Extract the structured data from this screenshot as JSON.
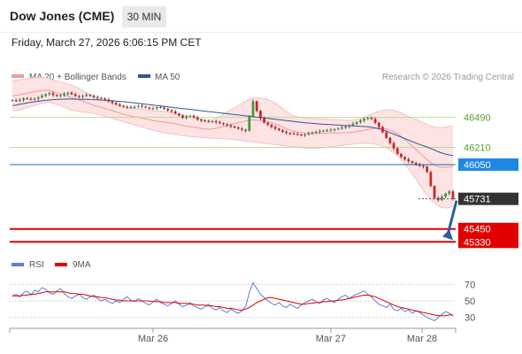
{
  "header": {
    "title": "Dow Jones (CME)",
    "timeframe": "30 MIN",
    "datetime": "Friday, March 27, 2026 6:06:15 PM CET"
  },
  "chart_data": {
    "type": "candlestick",
    "price_legend": [
      {
        "name": "MA 20 + Bollinger Bands",
        "color": "#f19a9a"
      },
      {
        "name": "MA 50",
        "color": "#2f5597"
      }
    ],
    "credit": "Research © 2026 Trading Central",
    "x_ticks": [
      "Mar 26",
      "Mar 27",
      "Mar 28"
    ],
    "y_range": [
      45250,
      46800
    ],
    "levels": [
      {
        "value": 46490,
        "label": "46490",
        "kind": "resistance",
        "color": "#8bc34a"
      },
      {
        "value": 46210,
        "label": "46210",
        "kind": "resistance",
        "color": "#8bc34a"
      },
      {
        "value": 46050,
        "label": "46050",
        "kind": "pivot",
        "color": "#1565c0"
      },
      {
        "value": 45731,
        "label": "45731",
        "kind": "last",
        "color": "#333333"
      },
      {
        "value": 45450,
        "label": "45450",
        "kind": "support",
        "color": "#e00000"
      },
      {
        "value": 45330,
        "label": "45330",
        "kind": "support",
        "color": "#e00000"
      }
    ],
    "close": [
      46650,
      46645,
      46652,
      46668,
      46662,
      46658,
      46665,
      46675,
      46690,
      46705,
      46715,
      46698,
      46688,
      46695,
      46710,
      46720,
      46705,
      46690,
      46682,
      46690,
      46700,
      46692,
      46680,
      46672,
      46665,
      46655,
      46640,
      46625,
      46610,
      46598,
      46590,
      46585,
      46580,
      46590,
      46598,
      46590,
      46580,
      46570,
      46575,
      46585,
      46580,
      46570,
      46555,
      46545,
      46525,
      46508,
      46488,
      46498,
      46505,
      46490,
      46470,
      46460,
      46455,
      46450,
      46455,
      46445,
      46435,
      46425,
      46415,
      46405,
      46395,
      46385,
      46375,
      46365,
      46500,
      46640,
      46550,
      46480,
      46440,
      46420,
      46400,
      46385,
      46370,
      46355,
      46345,
      46340,
      46335,
      46330,
      46325,
      46330,
      46340,
      46350,
      46355,
      46360,
      46365,
      46370,
      46375,
      46380,
      46385,
      46395,
      46405,
      46415,
      46430,
      46445,
      46460,
      46475,
      46485,
      46475,
      46440,
      46400,
      46350,
      46300,
      46250,
      46200,
      46150,
      46120,
      46100,
      46080,
      46065,
      46050,
      46040,
      46030,
      45980,
      45850,
      45740,
      45720,
      45750,
      45780,
      45800,
      45731
    ],
    "bollinger_upper": [
      46830,
      46835,
      46840,
      46845,
      46850,
      46855,
      46858,
      46860,
      46862,
      46860,
      46850,
      46840,
      46830,
      46820,
      46810,
      46800,
      46790,
      46775,
      46760,
      46740,
      46720,
      46700,
      46680,
      46665,
      46655,
      46645,
      46635,
      46625,
      46610,
      46600,
      46590,
      46580,
      46575,
      46570,
      46568,
      46565,
      46560,
      46555,
      46550,
      46550,
      46548,
      46545,
      46540,
      46535,
      46530,
      46520,
      46510,
      46500,
      46495,
      46490,
      46480,
      46470,
      46465,
      46460,
      46470,
      46480,
      46500,
      46520,
      46540,
      46560,
      46580,
      46600,
      46620,
      46640,
      46660,
      46670,
      46672,
      46670,
      46665,
      46655,
      46640,
      46620,
      46600,
      46570,
      46545,
      46520,
      46505,
      46495,
      46488,
      46485,
      46483,
      46480,
      46478,
      46476,
      46475,
      46474,
      46472,
      46470,
      46468,
      46465,
      46463,
      46462,
      46465,
      46470,
      46480,
      46490,
      46505,
      46520,
      46535,
      46545,
      46555,
      46560,
      46560,
      46555,
      46545,
      46530,
      46515,
      46500,
      46485,
      46470,
      46455,
      46440,
      46425,
      46410,
      46400,
      46395,
      46395,
      46400,
      46405,
      46410
    ],
    "bollinger_lower": [
      46550,
      46555,
      46560,
      46570,
      46580,
      46590,
      46600,
      46610,
      46620,
      46625,
      46630,
      46620,
      46610,
      46600,
      46585,
      46570,
      46560,
      46550,
      46545,
      46540,
      46535,
      46530,
      46525,
      46520,
      46510,
      46500,
      46490,
      46480,
      46470,
      46460,
      46450,
      46440,
      46430,
      46420,
      46410,
      46400,
      46390,
      46380,
      46370,
      46362,
      46355,
      46348,
      46342,
      46336,
      46330,
      46325,
      46320,
      46316,
      46312,
      46308,
      46305,
      46302,
      46300,
      46298,
      46296,
      46294,
      46292,
      46290,
      46288,
      46285,
      46282,
      46278,
      46274,
      46270,
      46265,
      46260,
      46256,
      46252,
      46248,
      46244,
      46240,
      46236,
      46232,
      46228,
      46224,
      46220,
      46216,
      46212,
      46208,
      46205,
      46203,
      46202,
      46203,
      46205,
      46208,
      46212,
      46216,
      46220,
      46224,
      46228,
      46232,
      46236,
      46240,
      46244,
      46248,
      46250,
      46248,
      46245,
      46240,
      46232,
      46220,
      46205,
      46185,
      46160,
      46130,
      46095,
      46055,
      46010,
      45960,
      45910,
      45860,
      45810,
      45765,
      45725,
      45690,
      45665,
      45650,
      45645,
      45650,
      45660
    ],
    "ma50": [
      46600,
      46605,
      46612,
      46618,
      46625,
      46630,
      46635,
      46640,
      46644,
      46648,
      46652,
      46655,
      46657,
      46659,
      46660,
      46661,
      46661,
      46660,
      46659,
      46658,
      46657,
      46656,
      46655,
      46654,
      46652,
      46650,
      46648,
      46645,
      46642,
      46639,
      46636,
      46632,
      46628,
      46624,
      46620,
      46616,
      46612,
      46608,
      46604,
      46600,
      46596,
      46592,
      46588,
      46584,
      46580,
      46576,
      46572,
      46568,
      46564,
      46560,
      46556,
      46552,
      46548,
      46544,
      46540,
      46536,
      46532,
      46528,
      46524,
      46520,
      46516,
      46512,
      46508,
      46504,
      46500,
      46496,
      46492,
      46488,
      46484,
      46480,
      46476,
      46472,
      46468,
      46464,
      46460,
      46456,
      46452,
      46448,
      46444,
      46440,
      46437,
      46434,
      46431,
      46428,
      46426,
      46424,
      46422,
      46420,
      46418,
      46416,
      46414,
      46412,
      46410,
      46408,
      46406,
      46404,
      46402,
      46398,
      46392,
      46384,
      46374,
      46362,
      46348,
      46334,
      46320,
      46306,
      46292,
      46278,
      46264,
      46250,
      46238,
      46226,
      46214,
      46200,
      46185,
      46170,
      46158,
      46148,
      46140,
      46135
    ],
    "rsi_panel": {
      "legend": [
        {
          "name": "RSI",
          "color": "#5b7fd6"
        },
        {
          "name": "9MA",
          "color": "#e00000"
        }
      ],
      "levels": [
        {
          "value": 70,
          "label": "70"
        },
        {
          "value": 50,
          "label": "50"
        },
        {
          "value": 30,
          "label": "30"
        }
      ],
      "y_range": [
        20,
        80
      ],
      "rsi": [
        56,
        58,
        55,
        60,
        62,
        57,
        63,
        61,
        66,
        64,
        60,
        58,
        62,
        65,
        59,
        55,
        53,
        56,
        58,
        54,
        52,
        55,
        57,
        53,
        50,
        52,
        49,
        47,
        50,
        48,
        52,
        55,
        51,
        49,
        53,
        50,
        47,
        45,
        49,
        52,
        48,
        46,
        44,
        47,
        50,
        46,
        43,
        45,
        48,
        44,
        42,
        40,
        43,
        46,
        41,
        39,
        42,
        38,
        36,
        40,
        37,
        35,
        38,
        43,
        60,
        72,
        65,
        58,
        54,
        50,
        47,
        45,
        48,
        44,
        42,
        46,
        43,
        41,
        45,
        48,
        50,
        52,
        49,
        47,
        51,
        53,
        50,
        48,
        52,
        55,
        57,
        53,
        56,
        58,
        60,
        62,
        58,
        55,
        50,
        46,
        44,
        42,
        46,
        40,
        38,
        41,
        37,
        39,
        35,
        38,
        36,
        33,
        30,
        28,
        26,
        30,
        34,
        37,
        35,
        32
      ],
      "ma9": [
        56,
        56,
        56,
        57,
        57,
        58,
        58,
        59,
        60,
        61,
        61,
        61,
        61,
        61,
        61,
        60,
        59,
        59,
        58,
        58,
        57,
        56,
        55,
        55,
        54,
        54,
        53,
        52,
        51,
        51,
        50,
        50,
        50,
        50,
        50,
        50,
        50,
        50,
        49,
        49,
        49,
        48,
        48,
        48,
        48,
        47,
        47,
        47,
        46,
        46,
        45,
        45,
        45,
        44,
        44,
        43,
        43,
        42,
        41,
        41,
        40,
        39,
        39,
        40,
        42,
        45,
        48,
        50,
        52,
        54,
        54,
        53,
        52,
        51,
        50,
        49,
        48,
        47,
        46,
        46,
        47,
        47,
        48,
        48,
        49,
        49,
        50,
        50,
        51,
        51,
        52,
        53,
        54,
        55,
        56,
        57,
        57,
        56,
        55,
        53,
        51,
        49,
        47,
        45,
        43,
        42,
        41,
        40,
        39,
        38,
        37,
        36,
        35,
        34,
        33,
        32,
        32,
        32,
        33,
        33
      ]
    }
  }
}
